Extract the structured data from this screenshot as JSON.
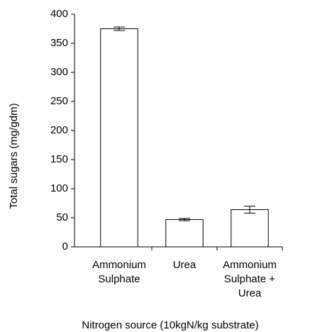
{
  "chart_data": {
    "type": "bar",
    "y_label": "Total sugars (mg/gdm)",
    "x_label": "Nitrogen source (10kgN/kg substrate)",
    "categories": [
      "Ammonium Sulphate",
      "Urea",
      "Ammonium Sulphate + Urea"
    ],
    "values": [
      375,
      47,
      64
    ],
    "errors": [
      3,
      2,
      6
    ],
    "color": "#ffffff",
    "ylim": [
      0,
      400
    ],
    "yticks": [
      0,
      50,
      100,
      150,
      200,
      250,
      300,
      350,
      400
    ],
    "grid": false
  }
}
